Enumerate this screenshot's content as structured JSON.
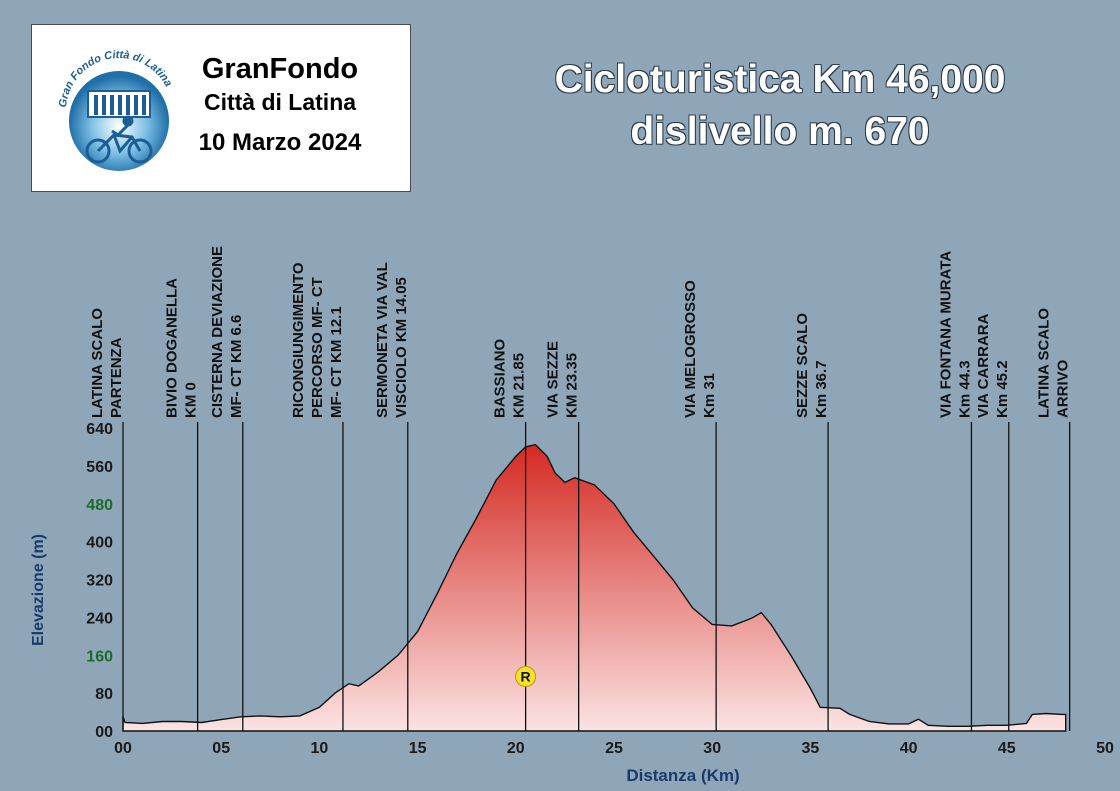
{
  "logo": {
    "ring_text": "Gran Fondo Città di Latina",
    "line1": "GranFondo",
    "line2": "Città di Latina",
    "line3": "10 Marzo 2024"
  },
  "headline": {
    "line1": "Cicloturistica Km 46,000",
    "line2": "dislivello m. 670"
  },
  "colors": {
    "background": "#8fa6b8",
    "profile_top": "#d42a22",
    "profile_bottom": "#fbe3e3",
    "axis_label": "#1a3a6a",
    "highlight_tick": "#1d6b2a"
  },
  "chart_data": {
    "type": "area",
    "xlabel": "Distanza (Km)",
    "ylabel": "Elevazione (m)",
    "xlim": [
      0,
      50
    ],
    "ylim": [
      0,
      640
    ],
    "x_ticks": [
      {
        "value": 0,
        "label": "00"
      },
      {
        "value": 5,
        "label": "05"
      },
      {
        "value": 10,
        "label": "10"
      },
      {
        "value": 15,
        "label": "15"
      },
      {
        "value": 20,
        "label": "20"
      },
      {
        "value": 25,
        "label": "25"
      },
      {
        "value": 30,
        "label": "30"
      },
      {
        "value": 35,
        "label": "35"
      },
      {
        "value": 40,
        "label": "40"
      },
      {
        "value": 45,
        "label": "45"
      },
      {
        "value": 50,
        "label": "50"
      }
    ],
    "y_ticks": [
      {
        "value": 0,
        "label": "00",
        "highlight": false
      },
      {
        "value": 80,
        "label": "80",
        "highlight": false
      },
      {
        "value": 160,
        "label": "160",
        "highlight": true
      },
      {
        "value": 240,
        "label": "240",
        "highlight": false
      },
      {
        "value": 320,
        "label": "320",
        "highlight": false
      },
      {
        "value": 400,
        "label": "400",
        "highlight": false
      },
      {
        "value": 480,
        "label": "480",
        "highlight": true
      },
      {
        "value": 560,
        "label": "560",
        "highlight": false
      },
      {
        "value": 640,
        "label": "640",
        "highlight": false
      }
    ],
    "profile": [
      [
        0,
        30
      ],
      [
        0.1,
        18
      ],
      [
        1,
        16
      ],
      [
        2,
        20
      ],
      [
        3,
        20
      ],
      [
        4,
        18
      ],
      [
        5,
        24
      ],
      [
        6,
        30
      ],
      [
        7,
        32
      ],
      [
        8,
        30
      ],
      [
        9,
        32
      ],
      [
        10,
        50
      ],
      [
        10.8,
        80
      ],
      [
        11.5,
        100
      ],
      [
        12,
        95
      ],
      [
        12.5,
        110
      ],
      [
        13,
        125
      ],
      [
        14,
        160
      ],
      [
        15,
        210
      ],
      [
        16,
        290
      ],
      [
        17,
        375
      ],
      [
        18,
        450
      ],
      [
        19,
        530
      ],
      [
        20,
        580
      ],
      [
        20.5,
        600
      ],
      [
        21,
        605
      ],
      [
        21.6,
        580
      ],
      [
        22,
        545
      ],
      [
        22.5,
        525
      ],
      [
        23,
        535
      ],
      [
        24,
        520
      ],
      [
        25,
        480
      ],
      [
        26,
        420
      ],
      [
        27,
        370
      ],
      [
        28,
        320
      ],
      [
        29,
        260
      ],
      [
        30,
        225
      ],
      [
        31,
        222
      ],
      [
        32,
        238
      ],
      [
        32.5,
        250
      ],
      [
        33,
        225
      ],
      [
        34,
        160
      ],
      [
        35,
        90
      ],
      [
        35.5,
        50
      ],
      [
        36.5,
        48
      ],
      [
        37,
        35
      ],
      [
        38,
        20
      ],
      [
        39,
        15
      ],
      [
        40,
        15
      ],
      [
        40.5,
        25
      ],
      [
        41,
        12
      ],
      [
        42,
        10
      ],
      [
        43,
        10
      ],
      [
        44,
        12
      ],
      [
        45,
        12
      ],
      [
        46,
        16
      ],
      [
        46.3,
        35
      ],
      [
        47,
        37
      ],
      [
        47.8,
        35
      ],
      [
        48,
        35
      ],
      [
        48,
        0
      ]
    ],
    "markers": [
      {
        "x": 0,
        "lines": [
          "LATINA SCALO",
          "PARTENZA"
        ]
      },
      {
        "x": 3.8,
        "lines": [
          "BIVIO DOGANELLA",
          "KM 0"
        ]
      },
      {
        "x": 6.1,
        "lines": [
          "CISTERNA DEVIAZIONE",
          "MF- CT  KM 6.6"
        ]
      },
      {
        "x": 11.2,
        "lines": [
          "RICONGIUNGIMENTO",
          "PERCORSO MF- CT",
          "MF- CT  KM 12.1"
        ]
      },
      {
        "x": 14.5,
        "lines": [
          "SERMONETA VIA VAL",
          "VISCIOLO  KM 14.05"
        ]
      },
      {
        "x": 20.5,
        "lines": [
          "BASSIANO",
          "KM 21.85"
        ]
      },
      {
        "x": 23.2,
        "lines": [
          "VIA SEZZE",
          "KM 23.35"
        ]
      },
      {
        "x": 30.2,
        "lines": [
          "VIA MELOGROSSO",
          "Km 31"
        ]
      },
      {
        "x": 35.9,
        "lines": [
          "SEZZE  SCALO",
          "Km 36.7"
        ]
      },
      {
        "x": 43.2,
        "lines": [
          "VIA FONTANA MURATA",
          "Km 44.3"
        ]
      },
      {
        "x": 45.1,
        "lines": [
          "VIA CARRARA",
          "Km 45.2"
        ]
      },
      {
        "x": 48.2,
        "lines": [
          "LATINA SCALO",
          "ARRIVO"
        ]
      }
    ],
    "refreshment": {
      "x": 20.5,
      "y": 115,
      "label": "R"
    }
  }
}
